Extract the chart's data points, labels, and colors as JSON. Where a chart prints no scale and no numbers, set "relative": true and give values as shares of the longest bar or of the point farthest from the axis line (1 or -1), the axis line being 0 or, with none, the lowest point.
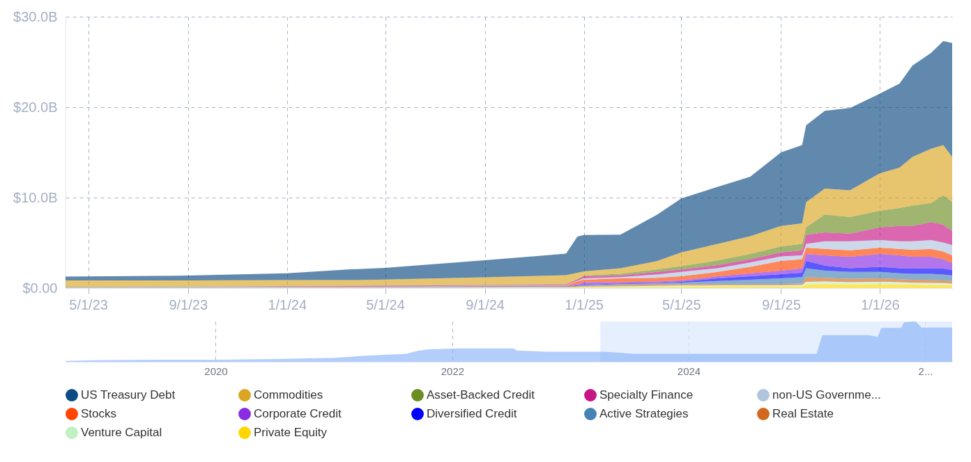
{
  "chart_data": [
    {
      "type": "area",
      "stacked": true,
      "legend": "bottom",
      "grid": true,
      "x": [
        "2023-04-03",
        "2023-09-01",
        "2024-01-01",
        "2024-03-20",
        "2024-05-01",
        "2024-09-01",
        "2024-12-10",
        "2024-12-24",
        "2025-01-01",
        "2025-02-15",
        "2025-04-01",
        "2025-05-01",
        "2025-06-15",
        "2025-07-25",
        "2025-09-01",
        "2025-09-27",
        "2025-10-02",
        "2025-10-25",
        "2025-11-25",
        "2026-01-01",
        "2026-01-25",
        "2026-02-10",
        "2026-03-05",
        "2026-03-20",
        "2026-03-31"
      ],
      "series": [
        {
          "name": "Private Equity",
          "color": "#ffd700",
          "values": [
            0.02,
            0.02,
            0.03,
            0.03,
            0.03,
            0.04,
            0.05,
            0.07,
            0.1,
            0.1,
            0.12,
            0.14,
            0.15,
            0.15,
            0.15,
            0.18,
            0.4,
            0.45,
            0.4,
            0.42,
            0.4,
            0.38,
            0.35,
            0.33,
            0.3
          ]
        },
        {
          "name": "Venture Capital",
          "color": "#c1f0c1",
          "values": [
            0.01,
            0.01,
            0.02,
            0.02,
            0.03,
            0.03,
            0.03,
            0.05,
            0.05,
            0.1,
            0.13,
            0.14,
            0.15,
            0.15,
            0.15,
            0.17,
            0.3,
            0.28,
            0.25,
            0.28,
            0.25,
            0.22,
            0.23,
            0.22,
            0.2
          ]
        },
        {
          "name": "Real Estate",
          "color": "#d2691e",
          "values": [
            0.01,
            0.01,
            0.01,
            0.02,
            0.02,
            0.03,
            0.04,
            0.06,
            0.08,
            0.14,
            0.15,
            0.14,
            0.15,
            0.15,
            0.15,
            0.16,
            0.51,
            0.4,
            0.37,
            0.37,
            0.34,
            0.33,
            0.32,
            0.3,
            0.29
          ]
        },
        {
          "name": "Active Strategies",
          "color": "#4682b4",
          "values": [
            0.03,
            0.04,
            0.04,
            0.04,
            0.04,
            0.04,
            0.05,
            0.07,
            0.08,
            0.11,
            0.11,
            0.17,
            0.34,
            0.48,
            0.62,
            0.7,
            0.99,
            0.79,
            0.76,
            0.71,
            0.65,
            0.65,
            0.68,
            0.65,
            0.62
          ]
        },
        {
          "name": "Diversified Credit",
          "color": "#0000ff",
          "values": [
            0.02,
            0.02,
            0.02,
            0.02,
            0.02,
            0.03,
            0.03,
            0.07,
            0.06,
            0.06,
            0.05,
            0.12,
            0.28,
            0.37,
            0.46,
            0.48,
            0.8,
            0.57,
            0.42,
            0.56,
            0.56,
            0.57,
            0.62,
            0.65,
            0.59
          ]
        },
        {
          "name": "Corporate Credit",
          "color": "#8a2be2",
          "values": [
            0.01,
            0.01,
            0.01,
            0.01,
            0.01,
            0.02,
            0.03,
            0.08,
            0.28,
            0.14,
            0.17,
            0.14,
            0.23,
            0.34,
            0.39,
            0.51,
            0.76,
            1.13,
            1.27,
            1.42,
            1.42,
            1.32,
            1.27,
            1.04,
            0.77
          ]
        },
        {
          "name": "Stocks",
          "color": "#ff4500",
          "values": [
            0.01,
            0.01,
            0.02,
            0.02,
            0.03,
            0.04,
            0.05,
            0.35,
            0.28,
            0.42,
            0.4,
            0.45,
            0.48,
            0.7,
            1.08,
            0.99,
            0.7,
            0.7,
            0.71,
            0.7,
            0.7,
            0.77,
            0.85,
            0.85,
            0.85
          ]
        },
        {
          "name": "non-US Governme...",
          "color": "#b0c4de",
          "values": [
            0.01,
            0.01,
            0.02,
            0.02,
            0.02,
            0.03,
            0.04,
            0.05,
            0.14,
            0.14,
            0.37,
            0.48,
            0.42,
            0.48,
            0.5,
            0.43,
            0.43,
            0.85,
            0.99,
            0.85,
            0.85,
            0.93,
            0.99,
            0.99,
            1.13
          ]
        },
        {
          "name": "Specialty Finance",
          "color": "#c71585",
          "values": [
            0,
            0.01,
            0.05,
            0.06,
            0.07,
            0.07,
            0.08,
            0.15,
            0.23,
            0.2,
            0.28,
            0.28,
            0.34,
            0.37,
            0.45,
            0.56,
            0.99,
            0.99,
            0.85,
            1.41,
            1.69,
            1.69,
            1.98,
            1.97,
            1.55
          ]
        },
        {
          "name": "Asset-Backed Credit",
          "color": "#6b8e23",
          "values": [
            0.01,
            0.01,
            0.02,
            0.02,
            0.03,
            0.03,
            0.04,
            0.05,
            0.1,
            0.17,
            0.28,
            0.37,
            0.51,
            0.57,
            0.65,
            0.71,
            0.84,
            1.98,
            1.83,
            1.84,
            1.98,
            2.26,
            2.12,
            3.25,
            3.25
          ]
        },
        {
          "name": "Commodities",
          "color": "#daa520",
          "values": [
            0.72,
            0.69,
            0.65,
            0.62,
            0.65,
            0.83,
            0.98,
            0.7,
            0.44,
            0.62,
            0.93,
            1.52,
            1.84,
            1.97,
            2.26,
            2.26,
            2.78,
            2.86,
            2.95,
            4.14,
            4.46,
            5.38,
            5.99,
            5.55,
            4.95
          ]
        },
        {
          "name": "US Treasury Debt",
          "color": "#0d4a83",
          "values": [
            0.42,
            0.54,
            0.75,
            1.19,
            1.28,
            1.89,
            2.38,
            4.0,
            4.02,
            3.7,
            5.11,
            5.95,
            6.31,
            6.57,
            8.14,
            8.65,
            8.5,
            8.6,
            9.1,
            8.8,
            9.3,
            10.1,
            10.6,
            11.5,
            12.6
          ]
        }
      ],
      "xlim": [
        "2023-04-03",
        "2026-03-31"
      ],
      "ylim": [
        0,
        30
      ],
      "xticks": [
        {
          "value": "2023-05-01",
          "label": "5/1/23"
        },
        {
          "value": "2023-09-01",
          "label": "9/1/23"
        },
        {
          "value": "2024-01-01",
          "label": "1/1/24"
        },
        {
          "value": "2024-05-01",
          "label": "5/1/24"
        },
        {
          "value": "2024-09-01",
          "label": "9/1/24"
        },
        {
          "value": "2025-01-01",
          "label": "1/1/25"
        },
        {
          "value": "2025-05-01",
          "label": "5/1/25"
        },
        {
          "value": "2025-09-01",
          "label": "9/1/25"
        },
        {
          "value": "2026-01-01",
          "label": "1/1/26"
        }
      ],
      "yticks": [
        {
          "value": 0,
          "label": "$0.00"
        },
        {
          "value": 10,
          "label": "$10.0B"
        },
        {
          "value": 20,
          "label": "$20.0B"
        },
        {
          "value": 30,
          "label": "$30.0B"
        }
      ]
    },
    {
      "type": "area",
      "relative": true,
      "grid": "x",
      "color": "#8ab4f8",
      "x": [
        "2018-09-24",
        "2018-12-24",
        "2019-07-08",
        "2020-01-08",
        "2020-07-08",
        "2021-01-04",
        "2021-04-05",
        "2021-08-11",
        "2021-09-16",
        "2021-10-19",
        "2022-01-19",
        "2022-07-09",
        "2022-07-19",
        "2022-10-19",
        "2023-04-16",
        "2023-07-16",
        "2025-01-30",
        "2025-02-17",
        "2025-07-09",
        "2025-08-07",
        "2025-08-18",
        "2025-10-19",
        "2025-10-27",
        "2025-12-02",
        "2025-12-20",
        "2026-03-25"
      ],
      "values": [
        0.02,
        0.04,
        0.05,
        0.05,
        0.07,
        0.1,
        0.15,
        0.2,
        0.27,
        0.31,
        0.33,
        0.33,
        0.28,
        0.25,
        0.25,
        0.2,
        0.2,
        0.66,
        0.66,
        0.62,
        0.84,
        0.84,
        0.98,
        1.0,
        0.85,
        0.85
      ],
      "xlim": [
        "2018-09-24",
        "2026-03-25"
      ],
      "xticks": [
        {
          "value": "2020-01-01",
          "label": "2020"
        },
        {
          "value": "2022-01-01",
          "label": "2022"
        },
        {
          "value": "2024-01-01",
          "label": "2024"
        },
        {
          "value": "2026-01-01",
          "label": "2..."
        }
      ],
      "bands": [
        {
          "axis": "x",
          "from": "2023-04-03",
          "to": "2026-03-25",
          "color": "#dce8fd"
        }
      ]
    }
  ]
}
